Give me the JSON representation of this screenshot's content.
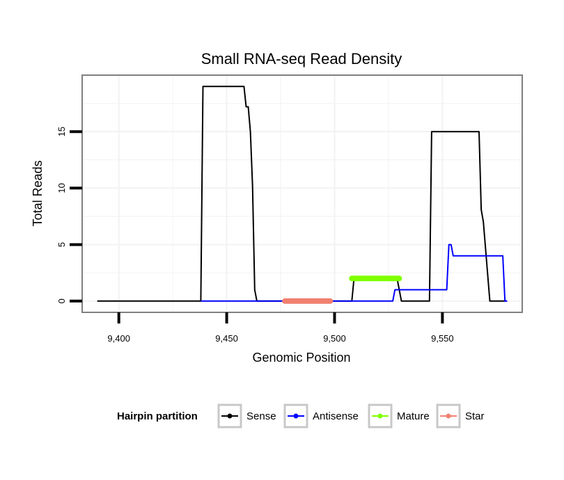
{
  "chart_data": {
    "type": "line",
    "title": "Small RNA-seq Read Density",
    "xlabel": "Genomic Position",
    "ylabel": "Total Reads",
    "xlim": [
      9383,
      9587
    ],
    "ylim": [
      -1,
      20
    ],
    "x_ticks": [
      9400,
      9450,
      9500,
      9550
    ],
    "x_tick_labels": [
      "9,400",
      "9,450",
      "9,500",
      "9,550"
    ],
    "y_ticks": [
      0,
      5,
      10,
      15
    ],
    "y_tick_labels": [
      "0",
      "5",
      "10",
      "15"
    ],
    "grid": true,
    "legend": {
      "title": "Hairpin partition",
      "position": "bottom",
      "entries": [
        {
          "name": "Sense",
          "color": "#000000"
        },
        {
          "name": "Antisense",
          "color": "#0000ff"
        },
        {
          "name": "Mature",
          "color": "#7fff00"
        },
        {
          "name": "Star",
          "color": "#f08070"
        }
      ]
    },
    "series": [
      {
        "name": "Sense",
        "color": "#000000",
        "x": [
          9390,
          9438,
          9439,
          9458,
          9459,
          9460,
          9461,
          9462,
          9463,
          9464,
          9508,
          9509,
          9529,
          9530,
          9531,
          9544,
          9545,
          9567,
          9568,
          9569,
          9572,
          9573,
          9580
        ],
        "y": [
          0,
          0,
          19,
          19,
          17.2,
          17.2,
          15,
          10.2,
          1,
          0,
          0,
          2,
          2,
          1,
          0,
          0,
          15,
          15,
          8.1,
          7,
          0,
          0,
          0
        ]
      },
      {
        "name": "Antisense",
        "color": "#0000ff",
        "x": [
          9438,
          9527,
          9528,
          9552,
          9553,
          9554,
          9555,
          9578,
          9579,
          9580
        ],
        "y": [
          0,
          0,
          1,
          1,
          5,
          5,
          4,
          4,
          0,
          0
        ]
      },
      {
        "name": "Mature",
        "color": "#7fff00",
        "x": [
          9508,
          9530
        ],
        "y": [
          2,
          2
        ]
      },
      {
        "name": "Star",
        "color": "#f08070",
        "x": [
          9477,
          9498
        ],
        "y": [
          0,
          0
        ]
      }
    ]
  }
}
